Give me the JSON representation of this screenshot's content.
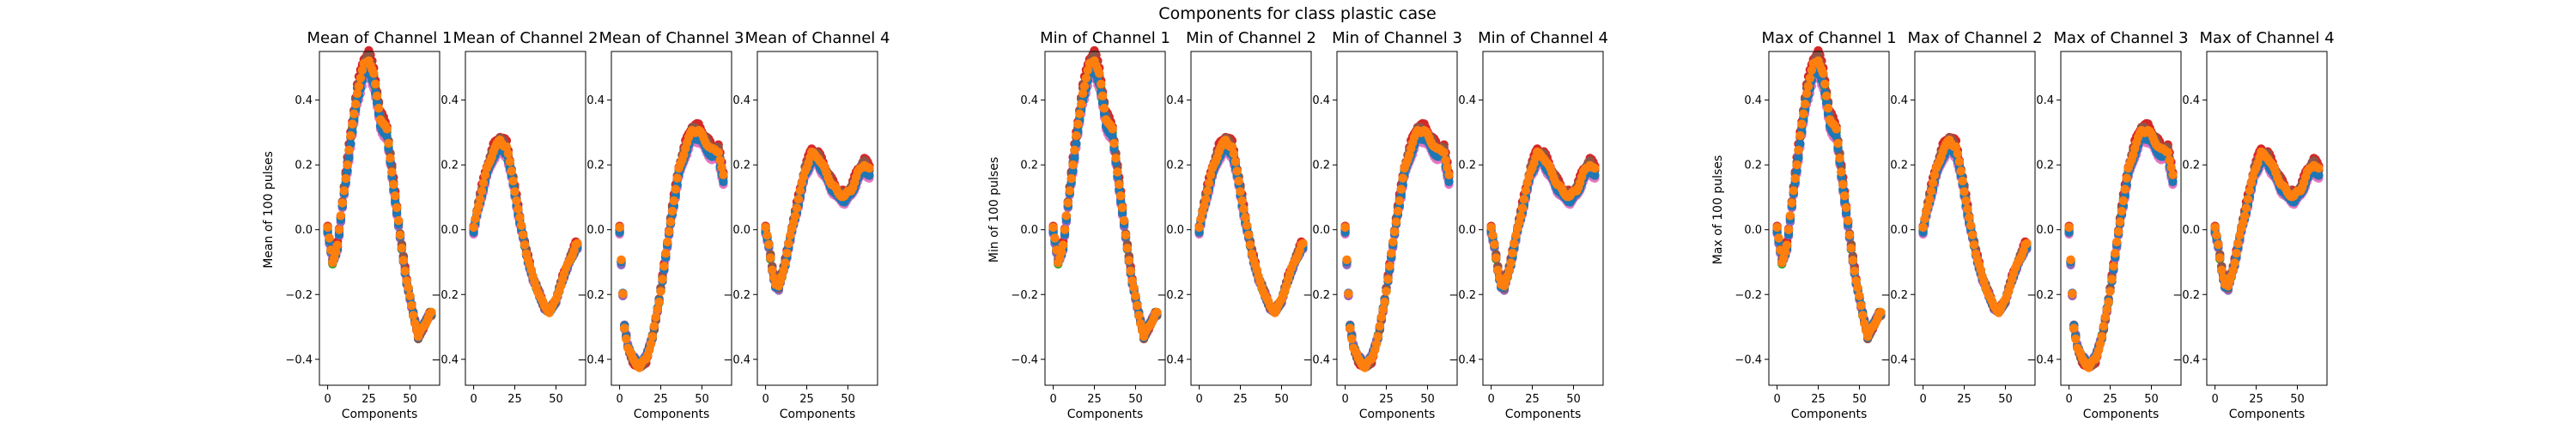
{
  "figure_title": "Components for class plastic case",
  "series_colors": [
    "#1f77b4",
    "#ff7f0e",
    "#2ca02c",
    "#d62728",
    "#9467bd",
    "#8c564b",
    "#e377c2",
    "#7f7f7f",
    "#bcbd22",
    "#17becf"
  ],
  "chart_data": [
    {
      "type": "scatter",
      "title": "Mean of Channel 1",
      "xlabel": "Components",
      "ylabel": "Mean of 100 pulses",
      "xlim": [
        -5,
        68
      ],
      "ylim": [
        -0.48,
        0.55
      ],
      "xticks": [
        "0",
        "25",
        "50"
      ],
      "yticks": [
        "0.4",
        "0.2",
        "0.0",
        "−0.2",
        "−0.4"
      ],
      "shape": "c1"
    },
    {
      "type": "scatter",
      "title": "Mean of Channel 2",
      "xlabel": "",
      "ylabel": "",
      "xlim": [
        -5,
        68
      ],
      "ylim": [
        -0.48,
        0.55
      ],
      "xticks": [
        "0",
        "25",
        "50"
      ],
      "yticks": [
        "0.4",
        "0.2",
        "0.0",
        "−0.2",
        "−0.4"
      ],
      "shape": "c2"
    },
    {
      "type": "scatter",
      "title": "Mean of Channel 3",
      "xlabel": "Components",
      "ylabel": "",
      "xlim": [
        -5,
        68
      ],
      "ylim": [
        -0.48,
        0.55
      ],
      "xticks": [
        "0",
        "25",
        "50"
      ],
      "yticks": [
        "0.4",
        "0.2",
        "0.0",
        "−0.2",
        "−0.4"
      ],
      "shape": "c3"
    },
    {
      "type": "scatter",
      "title": "Mean of Channel 4",
      "xlabel": "Components",
      "ylabel": "",
      "xlim": [
        -5,
        68
      ],
      "ylim": [
        -0.48,
        0.55
      ],
      "xticks": [
        "0",
        "25",
        "50"
      ],
      "yticks": [
        "0.4",
        "0.2",
        "0.0",
        "−0.2",
        "−0.4"
      ],
      "shape": "c4"
    },
    {
      "type": "scatter",
      "title": "Min of Channel 1",
      "xlabel": "Components",
      "ylabel": "Min of 100 pulses",
      "xlim": [
        -5,
        68
      ],
      "ylim": [
        -0.48,
        0.55
      ],
      "xticks": [
        "0",
        "25",
        "50"
      ],
      "yticks": [
        "0.4",
        "0.2",
        "0.0",
        "−0.2",
        "−0.4"
      ],
      "shape": "c1"
    },
    {
      "type": "scatter",
      "title": "Min of Channel 2",
      "xlabel": "",
      "ylabel": "",
      "xlim": [
        -5,
        68
      ],
      "ylim": [
        -0.48,
        0.55
      ],
      "xticks": [
        "0",
        "25",
        "50"
      ],
      "yticks": [
        "0.4",
        "0.2",
        "0.0",
        "−0.2",
        "−0.4"
      ],
      "shape": "c2"
    },
    {
      "type": "scatter",
      "title": "Min of Channel 3",
      "xlabel": "Components",
      "ylabel": "",
      "xlim": [
        -5,
        68
      ],
      "ylim": [
        -0.48,
        0.55
      ],
      "xticks": [
        "0",
        "25",
        "50"
      ],
      "yticks": [
        "0.4",
        "0.2",
        "0.0",
        "−0.2",
        "−0.4"
      ],
      "shape": "c3"
    },
    {
      "type": "scatter",
      "title": "Min of Channel 4",
      "xlabel": "Components",
      "ylabel": "",
      "xlim": [
        -5,
        68
      ],
      "ylim": [
        -0.48,
        0.55
      ],
      "xticks": [
        "0",
        "25",
        "50"
      ],
      "yticks": [
        "0.4",
        "0.2",
        "0.0",
        "−0.2",
        "−0.4"
      ],
      "shape": "c4"
    },
    {
      "type": "scatter",
      "title": "Max of Channel 1",
      "xlabel": "Components",
      "ylabel": "Max of 100 pulses",
      "xlim": [
        -5,
        68
      ],
      "ylim": [
        -0.48,
        0.55
      ],
      "xticks": [
        "0",
        "25",
        "50"
      ],
      "yticks": [
        "0.4",
        "0.2",
        "0.0",
        "−0.2",
        "−0.4"
      ],
      "shape": "c1"
    },
    {
      "type": "scatter",
      "title": "Max of Channel 2",
      "xlabel": "",
      "ylabel": "",
      "xlim": [
        -5,
        68
      ],
      "ylim": [
        -0.48,
        0.55
      ],
      "xticks": [
        "0",
        "25",
        "50"
      ],
      "yticks": [
        "0.4",
        "0.2",
        "0.0",
        "−0.2",
        "−0.4"
      ],
      "shape": "c2"
    },
    {
      "type": "scatter",
      "title": "Max of Channel 3",
      "xlabel": "Components",
      "ylabel": "",
      "xlim": [
        -5,
        68
      ],
      "ylim": [
        -0.48,
        0.55
      ],
      "xticks": [
        "0",
        "25",
        "50"
      ],
      "yticks": [
        "0.4",
        "0.2",
        "0.0",
        "−0.2",
        "−0.4"
      ],
      "shape": "c3"
    },
    {
      "type": "scatter",
      "title": "Max of Channel 4",
      "xlabel": "Components",
      "ylabel": "",
      "xlim": [
        -5,
        68
      ],
      "ylim": [
        -0.48,
        0.55
      ],
      "xticks": [
        "0",
        "25",
        "50"
      ],
      "yticks": [
        "0.4",
        "0.2",
        "0.0",
        "−0.2",
        "−0.4"
      ],
      "shape": "c4"
    }
  ],
  "curve_shapes": {
    "c1": [
      [
        0,
        0.0
      ],
      [
        3,
        -0.1
      ],
      [
        6,
        -0.05
      ],
      [
        10,
        0.12
      ],
      [
        14,
        0.28
      ],
      [
        18,
        0.42
      ],
      [
        22,
        0.5
      ],
      [
        25,
        0.52
      ],
      [
        28,
        0.47
      ],
      [
        32,
        0.34
      ],
      [
        36,
        0.3
      ],
      [
        40,
        0.14
      ],
      [
        44,
        -0.02
      ],
      [
        48,
        -0.16
      ],
      [
        52,
        -0.26
      ],
      [
        55,
        -0.33
      ],
      [
        58,
        -0.3
      ],
      [
        62,
        -0.26
      ]
    ],
    "c2": [
      [
        0,
        0.0
      ],
      [
        2,
        0.05
      ],
      [
        5,
        0.12
      ],
      [
        8,
        0.18
      ],
      [
        12,
        0.24
      ],
      [
        16,
        0.27
      ],
      [
        20,
        0.25
      ],
      [
        24,
        0.15
      ],
      [
        28,
        0.03
      ],
      [
        32,
        -0.07
      ],
      [
        36,
        -0.15
      ],
      [
        40,
        -0.2
      ],
      [
        43,
        -0.24
      ],
      [
        46,
        -0.25
      ],
      [
        50,
        -0.22
      ],
      [
        54,
        -0.15
      ],
      [
        58,
        -0.1
      ],
      [
        62,
        -0.05
      ]
    ],
    "c3": [
      [
        0,
        0.0
      ],
      [
        1,
        -0.1
      ],
      [
        2,
        -0.2
      ],
      [
        3,
        -0.3
      ],
      [
        5,
        -0.36
      ],
      [
        8,
        -0.4
      ],
      [
        12,
        -0.42
      ],
      [
        16,
        -0.4
      ],
      [
        20,
        -0.33
      ],
      [
        24,
        -0.22
      ],
      [
        28,
        -0.08
      ],
      [
        32,
        0.06
      ],
      [
        36,
        0.18
      ],
      [
        40,
        0.25
      ],
      [
        44,
        0.3
      ],
      [
        48,
        0.3
      ],
      [
        52,
        0.27
      ],
      [
        56,
        0.24
      ],
      [
        60,
        0.24
      ],
      [
        63,
        0.16
      ]
    ],
    "c4": [
      [
        0,
        0.0
      ],
      [
        2,
        -0.05
      ],
      [
        4,
        -0.12
      ],
      [
        6,
        -0.17
      ],
      [
        8,
        -0.18
      ],
      [
        12,
        -0.1
      ],
      [
        16,
        0.0
      ],
      [
        20,
        0.09
      ],
      [
        24,
        0.18
      ],
      [
        28,
        0.23
      ],
      [
        32,
        0.22
      ],
      [
        36,
        0.18
      ],
      [
        40,
        0.14
      ],
      [
        44,
        0.11
      ],
      [
        48,
        0.1
      ],
      [
        52,
        0.12
      ],
      [
        56,
        0.17
      ],
      [
        60,
        0.2
      ],
      [
        63,
        0.18
      ]
    ]
  }
}
